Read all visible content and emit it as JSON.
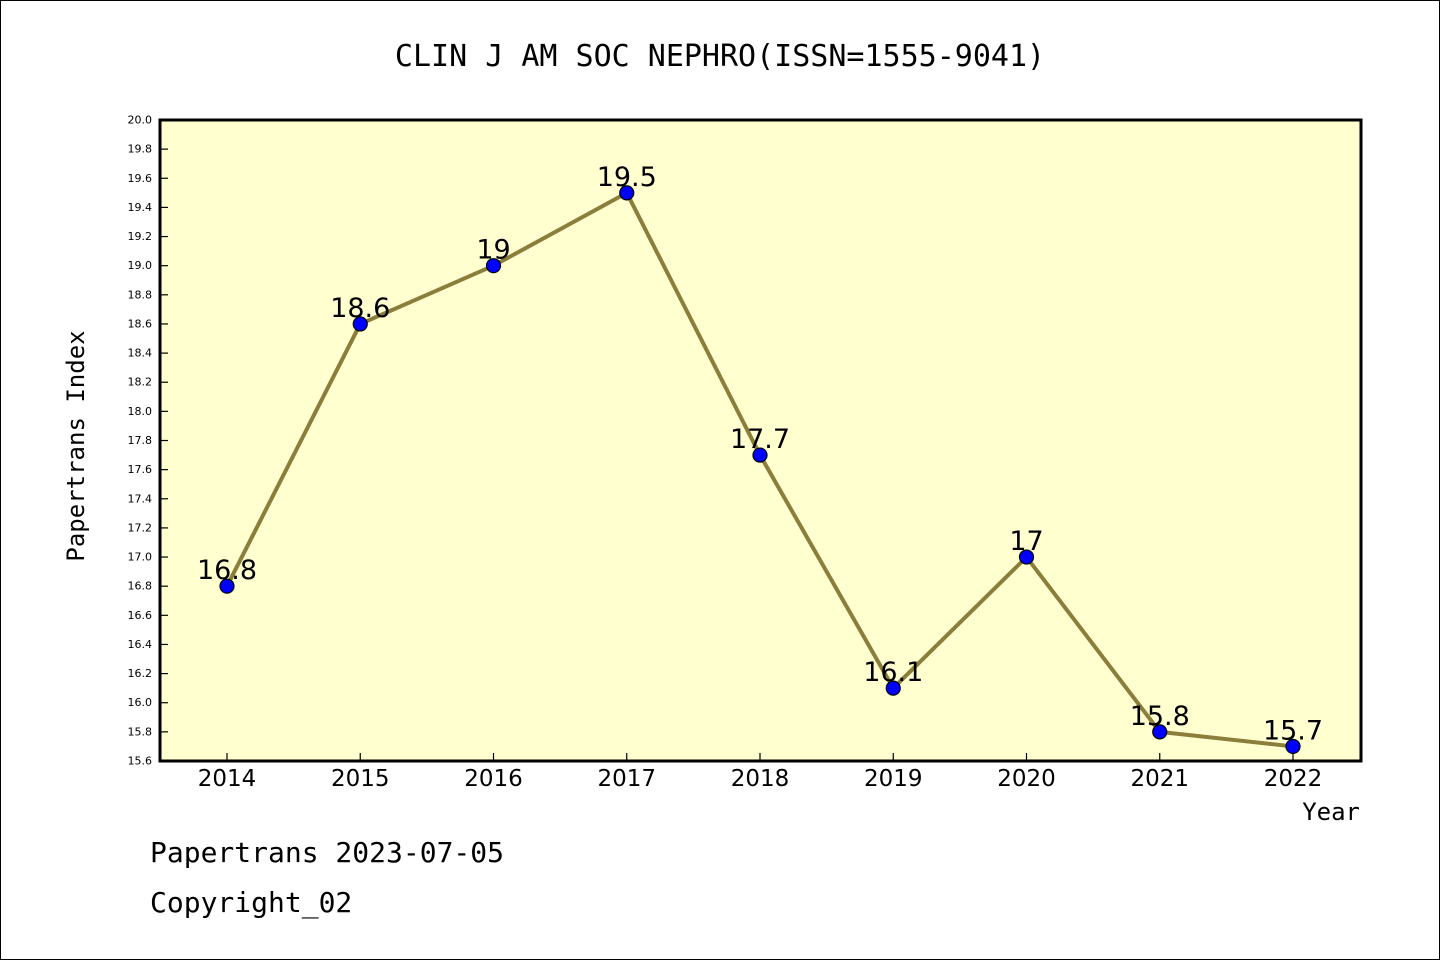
{
  "chart_data": {
    "type": "line",
    "title": "CLIN J AM SOC NEPHRO(ISSN=1555-9041)",
    "xlabel": "Year",
    "ylabel": "Papertrans Index",
    "categories": [
      "2014",
      "2015",
      "2016",
      "2017",
      "2018",
      "2019",
      "2020",
      "2021",
      "2022"
    ],
    "values": [
      16.8,
      18.6,
      19.0,
      19.5,
      17.7,
      16.1,
      17.0,
      15.8,
      15.7
    ],
    "data_labels": [
      "16.8",
      "18.6",
      "19",
      "19.5",
      "17.7",
      "16.1",
      "17",
      "15.8",
      "15.7"
    ],
    "ylim": [
      15.6,
      20.0
    ],
    "ytick_step": 0.2,
    "grid": false,
    "legend": "none",
    "colors": {
      "plot_background": "#ffffd0",
      "line": "#8b7d3a",
      "marker": "#0000ff"
    }
  },
  "footer": {
    "line1": "Papertrans 2023-07-05",
    "line2": "Copyright_02"
  }
}
